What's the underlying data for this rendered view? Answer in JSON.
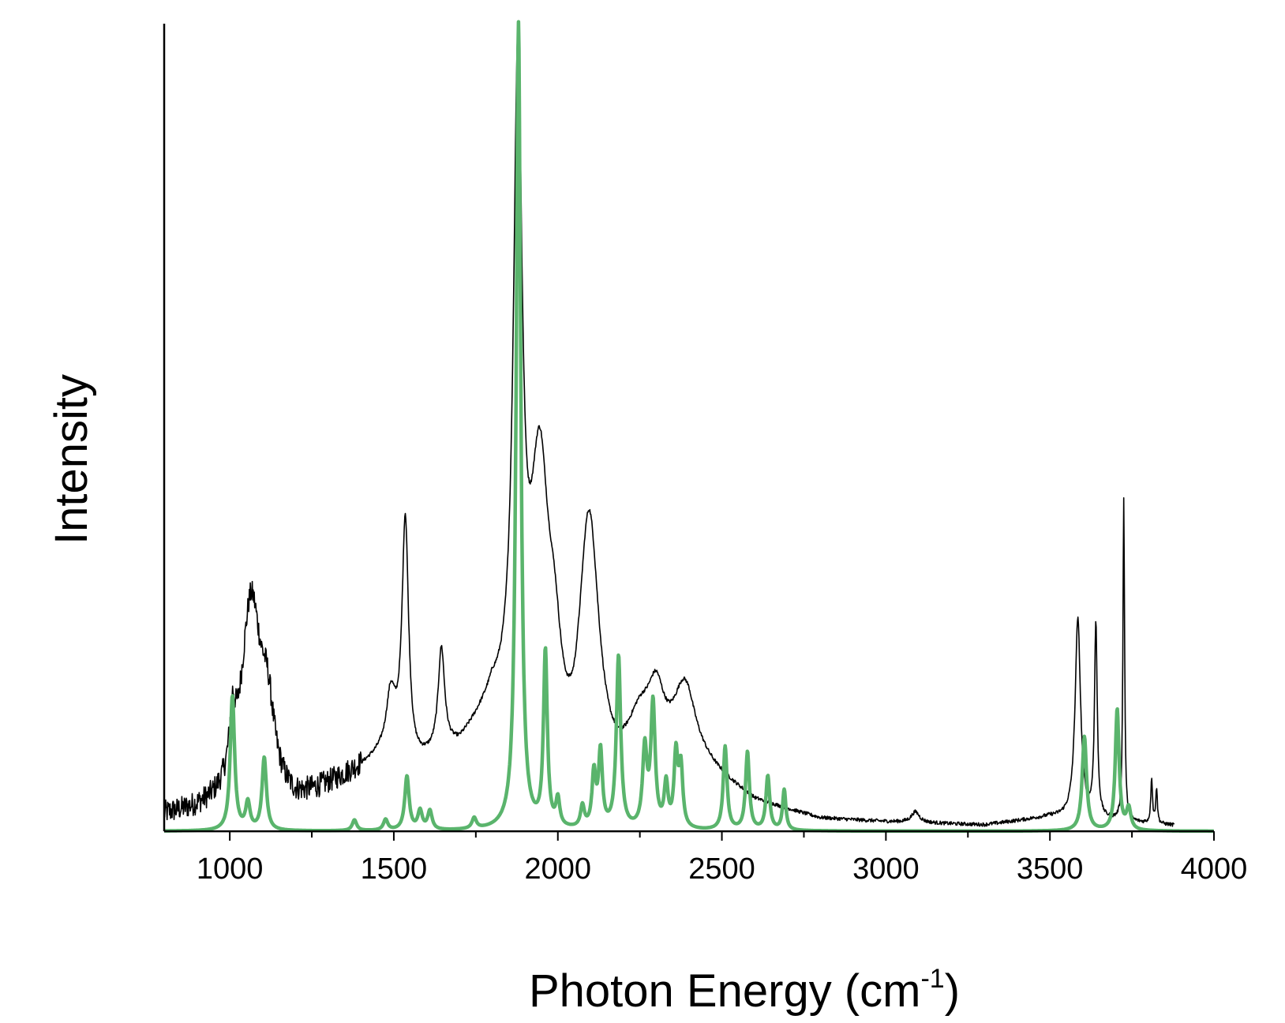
{
  "chart_data": {
    "type": "line",
    "title": "",
    "xlabel": {
      "main": "Photon Energy (cm",
      "sup": "-1",
      "tail": ")"
    },
    "ylabel": "Intensity",
    "xlim": [
      800,
      4000
    ],
    "ylim": [
      -0.12,
      3.0
    ],
    "x_ticks": [
      1000,
      1500,
      2000,
      2500,
      3000,
      3500,
      4000
    ],
    "x_minor_step": 250,
    "y_ticks_shown": false,
    "grid": false,
    "legend": "none",
    "series": [
      {
        "color": "#000000",
        "line_width": 1.6,
        "noise_amplitude": 0.045,
        "noisy_range": [
          800,
          1400
        ],
        "x_end": 3880,
        "baseline": [
          {
            "x": 800,
            "y": 0.05
          },
          {
            "x": 980,
            "y": 0.07
          },
          {
            "x": 1200,
            "y": 0.08
          },
          {
            "x": 1400,
            "y": 0.22
          },
          {
            "x": 1500,
            "y": 0.3
          },
          {
            "x": 1560,
            "y": 0.22
          },
          {
            "x": 1700,
            "y": 0.28
          },
          {
            "x": 1800,
            "y": 0.42
          },
          {
            "x": 2050,
            "y": 0.0
          },
          {
            "x": 2400,
            "y": 0.25
          },
          {
            "x": 2600,
            "y": 0.1
          },
          {
            "x": 2800,
            "y": 0.04
          },
          {
            "x": 3000,
            "y": 0.03
          },
          {
            "x": 3300,
            "y": 0.02
          },
          {
            "x": 3500,
            "y": 0.05
          },
          {
            "x": 3880,
            "y": 0.02
          }
        ],
        "peaks": [
          {
            "x": 1008,
            "y": 0.2,
            "w": 10
          },
          {
            "x": 1065,
            "y": 0.75,
            "w": 38
          },
          {
            "x": 1115,
            "y": 0.25,
            "w": 25
          },
          {
            "x": 1490,
            "y": 0.18,
            "w": 15
          },
          {
            "x": 1535,
            "y": 0.88,
            "w": 12
          },
          {
            "x": 1645,
            "y": 0.38,
            "w": 12
          },
          {
            "x": 1878,
            "y": 2.4,
            "w": 16
          },
          {
            "x": 1945,
            "y": 1.05,
            "w": 35
          },
          {
            "x": 1990,
            "y": 0.3,
            "w": 25
          },
          {
            "x": 2095,
            "y": 1.05,
            "w": 38
          },
          {
            "x": 2300,
            "y": 0.22,
            "w": 30
          },
          {
            "x": 2385,
            "y": 0.25,
            "w": 40
          },
          {
            "x": 2250,
            "y": 0.2,
            "w": 50
          },
          {
            "x": 3090,
            "y": 0.04,
            "w": 15
          },
          {
            "x": 3585,
            "y": 0.74,
            "w": 10
          },
          {
            "x": 3640,
            "y": 0.72,
            "w": 5
          },
          {
            "x": 3725,
            "y": 1.2,
            "w": 3
          },
          {
            "x": 3810,
            "y": 0.17,
            "w": 3
          },
          {
            "x": 3825,
            "y": 0.13,
            "w": 3
          }
        ]
      },
      {
        "color": "#5ab46c",
        "line_width": 4.5,
        "x_start": 800,
        "x_end": 4000,
        "peaks": [
          {
            "x": 1008,
            "y": 0.5,
            "w": 8
          },
          {
            "x": 1055,
            "y": 0.1,
            "w": 8
          },
          {
            "x": 1105,
            "y": 0.27,
            "w": 8
          },
          {
            "x": 1380,
            "y": 0.04,
            "w": 8
          },
          {
            "x": 1475,
            "y": 0.04,
            "w": 8
          },
          {
            "x": 1540,
            "y": 0.2,
            "w": 8
          },
          {
            "x": 1580,
            "y": 0.07,
            "w": 8
          },
          {
            "x": 1610,
            "y": 0.07,
            "w": 8
          },
          {
            "x": 1745,
            "y": 0.04,
            "w": 8
          },
          {
            "x": 1880,
            "y": 3.0,
            "w": 8
          },
          {
            "x": 1962,
            "y": 0.65,
            "w": 7
          },
          {
            "x": 2000,
            "y": 0.1,
            "w": 7
          },
          {
            "x": 2075,
            "y": 0.08,
            "w": 7
          },
          {
            "x": 2110,
            "y": 0.2,
            "w": 7
          },
          {
            "x": 2130,
            "y": 0.28,
            "w": 7
          },
          {
            "x": 2185,
            "y": 0.64,
            "w": 8
          },
          {
            "x": 2265,
            "y": 0.29,
            "w": 8
          },
          {
            "x": 2290,
            "y": 0.46,
            "w": 8
          },
          {
            "x": 2330,
            "y": 0.16,
            "w": 7
          },
          {
            "x": 2360,
            "y": 0.27,
            "w": 7
          },
          {
            "x": 2375,
            "y": 0.22,
            "w": 7
          },
          {
            "x": 2510,
            "y": 0.31,
            "w": 7
          },
          {
            "x": 2578,
            "y": 0.29,
            "w": 7
          },
          {
            "x": 2640,
            "y": 0.2,
            "w": 7
          },
          {
            "x": 2690,
            "y": 0.15,
            "w": 6
          },
          {
            "x": 3605,
            "y": 0.35,
            "w": 8
          },
          {
            "x": 3705,
            "y": 0.45,
            "w": 7
          },
          {
            "x": 3740,
            "y": 0.08,
            "w": 8
          }
        ]
      }
    ]
  }
}
